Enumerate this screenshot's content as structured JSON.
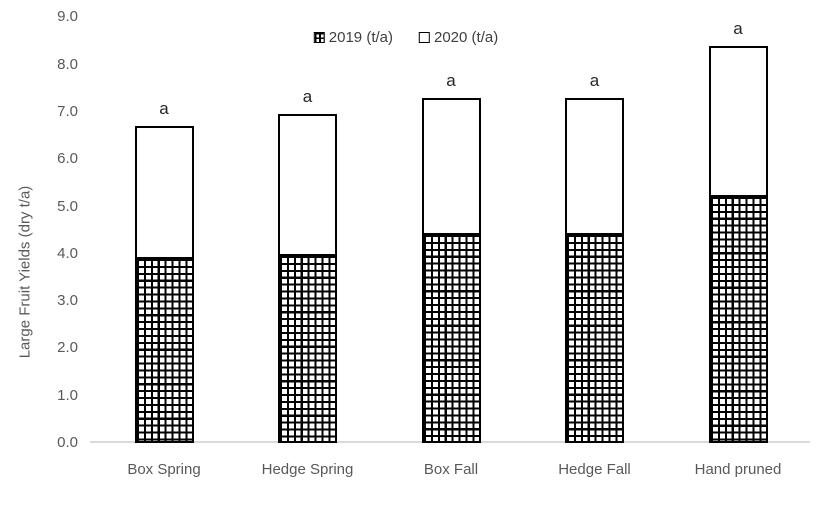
{
  "chart_data": {
    "type": "bar",
    "stacked": true,
    "title": "",
    "xlabel": "",
    "ylabel": "Large Fruit Yields (dry t/a)",
    "ylim": [
      0,
      9
    ],
    "ytick_step": 1.0,
    "ytick_labels": [
      "9.0",
      "8.0",
      "7.0",
      "6.0",
      "5.0",
      "4.0",
      "3.0",
      "2.0",
      "1.0",
      "0.0"
    ],
    "categories": [
      "Box Spring",
      "Hedge Spring",
      "Box Fall",
      "Hedge Fall",
      "Hand pruned"
    ],
    "series": [
      {
        "name": "2019 (t/a)",
        "fill": "grid-pattern",
        "values": [
          3.9,
          3.95,
          4.4,
          4.4,
          5.2
        ]
      },
      {
        "name": "2020 (t/a)",
        "fill": "white",
        "values": [
          2.8,
          3.0,
          2.9,
          2.9,
          3.2
        ]
      }
    ],
    "stack_totals": [
      6.7,
      6.95,
      7.3,
      7.3,
      8.4
    ],
    "bar_top_labels": [
      "a",
      "a",
      "a",
      "a",
      "a"
    ],
    "legend_position": "top-center",
    "grid": false,
    "colors": {
      "bar_border": "#000000",
      "bar_fill": "#ffffff",
      "pattern": "#000000",
      "axis_line": "#d9d9d9",
      "tick_text": "#595959",
      "bar_label_text": "#262626",
      "legend_text": "#404040",
      "background": "#ffffff"
    }
  }
}
